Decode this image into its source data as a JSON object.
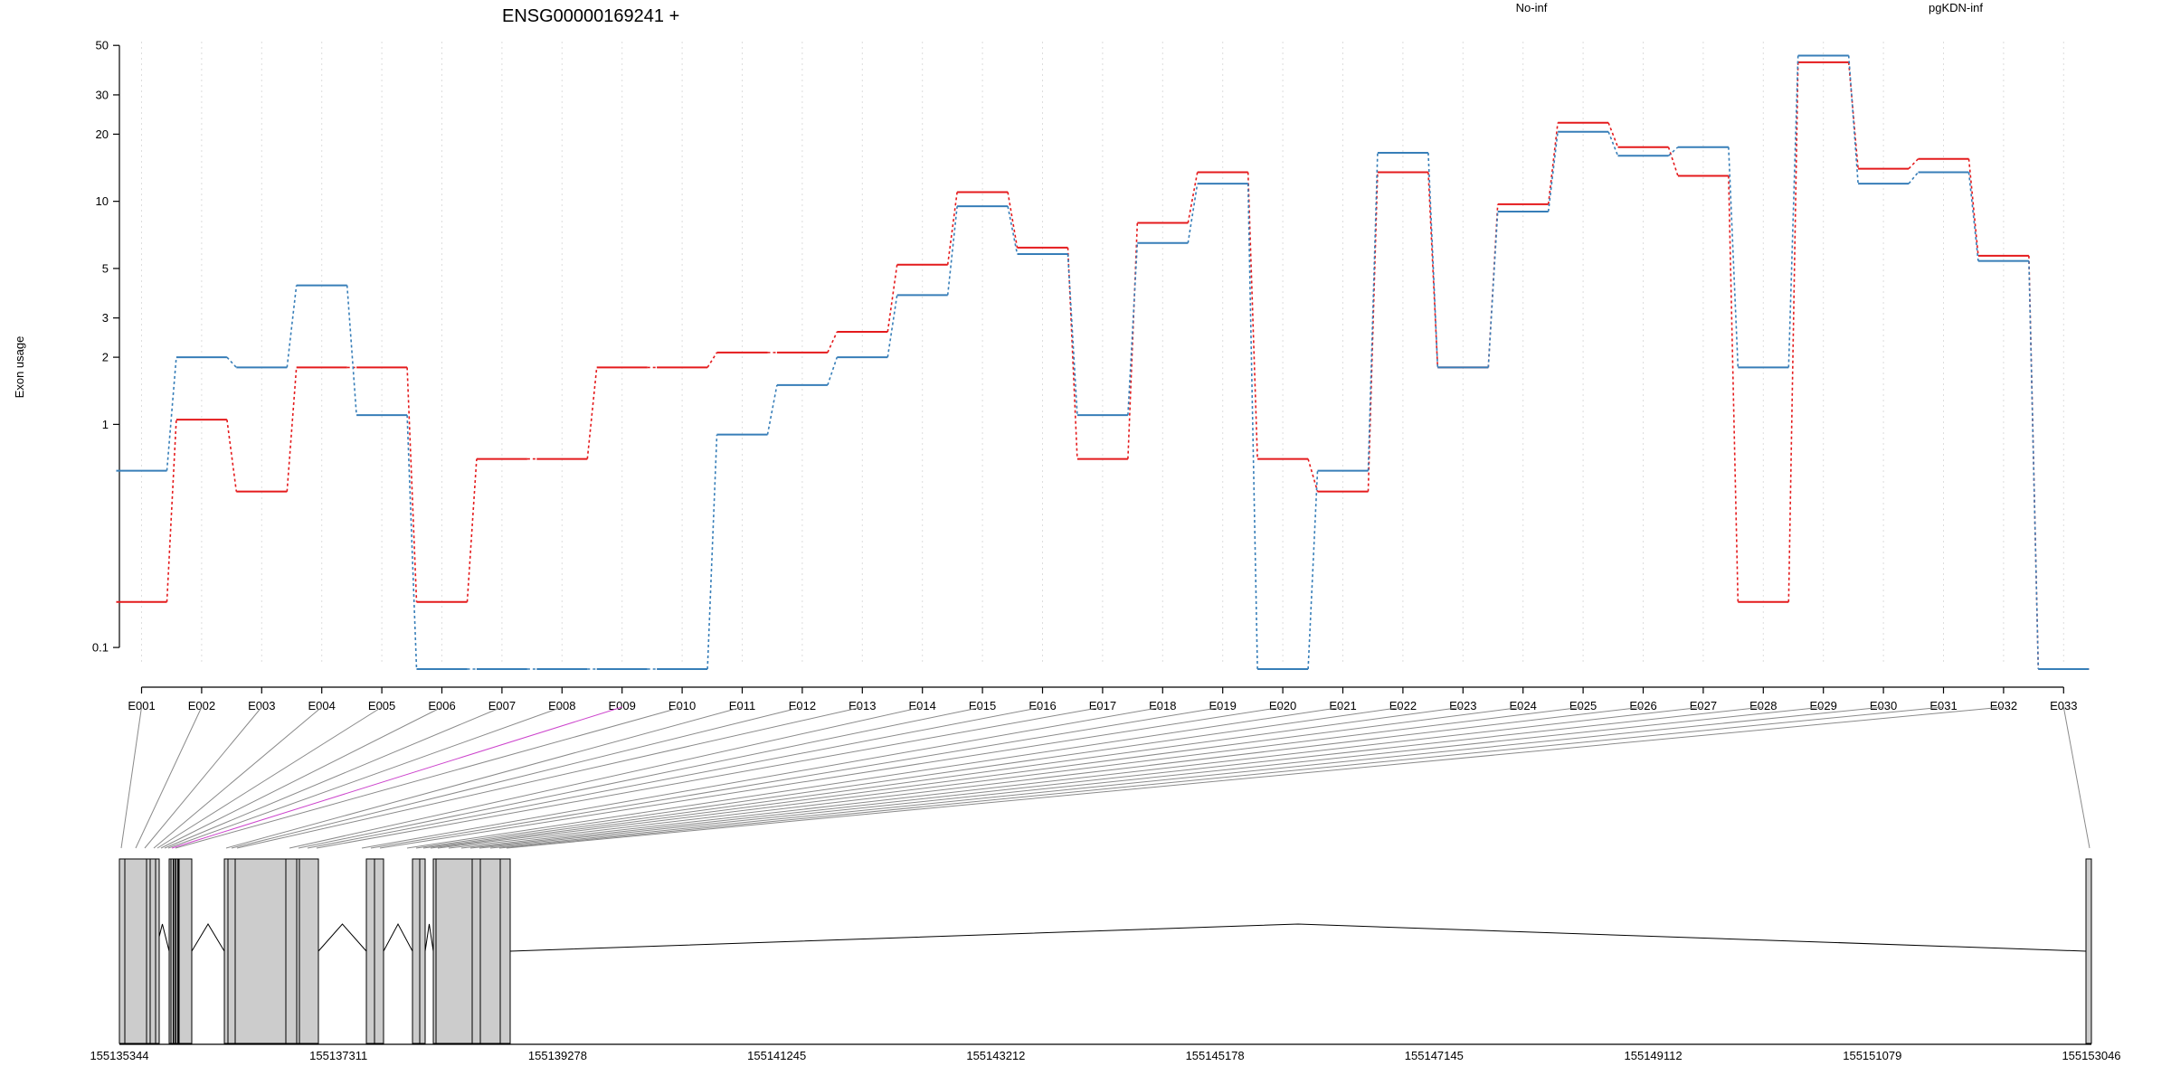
{
  "chart_data": {
    "type": "line",
    "title": "ENSG00000169241 +",
    "xlabel": "",
    "ylabel": "Exon usage",
    "y_scale": "log",
    "ylim": [
      0.08,
      52
    ],
    "y_ticks": [
      0.1,
      1,
      2,
      3,
      5,
      10,
      20,
      30,
      50
    ],
    "y_tick_labels": [
      "0.1",
      "1",
      "2",
      "3",
      "5",
      "10",
      "20",
      "30",
      "50"
    ],
    "grid": true,
    "legend_placement": "top-right",
    "categories": [
      "E001",
      "E002",
      "E003",
      "E004",
      "E005",
      "E006",
      "E007",
      "E008",
      "E009",
      "E010",
      "E011",
      "E012",
      "E013",
      "E014",
      "E015",
      "E016",
      "E017",
      "E018",
      "E019",
      "E020",
      "E021",
      "E022",
      "E023",
      "E024",
      "E025",
      "E026",
      "E027",
      "E028",
      "E029",
      "E030",
      "E031",
      "E032",
      "E033"
    ],
    "series": [
      {
        "name": "No-inf",
        "color": "#e41a1c",
        "values": [
          0.16,
          1.05,
          0.5,
          1.8,
          1.8,
          0.16,
          0.7,
          0.7,
          1.8,
          1.8,
          2.1,
          2.1,
          2.6,
          5.2,
          11,
          6.2,
          0.7,
          8.0,
          13.5,
          0.7,
          0.5,
          13.5,
          1.8,
          9.7,
          22.5,
          17.5,
          13,
          0.16,
          42,
          14,
          15.5,
          5.7,
          0.08
        ]
      },
      {
        "name": "pgKDN-inf",
        "color": "#377eb8",
        "values": [
          0.62,
          2.0,
          1.8,
          4.2,
          1.1,
          0.08,
          0.08,
          0.08,
          0.08,
          0.08,
          0.9,
          1.5,
          2.0,
          3.8,
          9.5,
          5.8,
          1.1,
          6.5,
          12,
          0.08,
          0.62,
          16.5,
          1.8,
          9.0,
          20.5,
          16,
          17.5,
          1.8,
          45,
          12,
          13.5,
          5.4,
          0.08
        ]
      }
    ],
    "genome": {
      "coordinate_ticks": [
        "155135344",
        "155137311",
        "155139278",
        "155141245",
        "155143212",
        "155145178",
        "155147145",
        "155149112",
        "155151079",
        "155153046"
      ],
      "highlight_color": "#cc44cc",
      "highlight_exon": "E009"
    }
  },
  "colors": {
    "box_fill": "#cccccc",
    "grid": "#dddddd",
    "connector": "#8a8a8a"
  }
}
